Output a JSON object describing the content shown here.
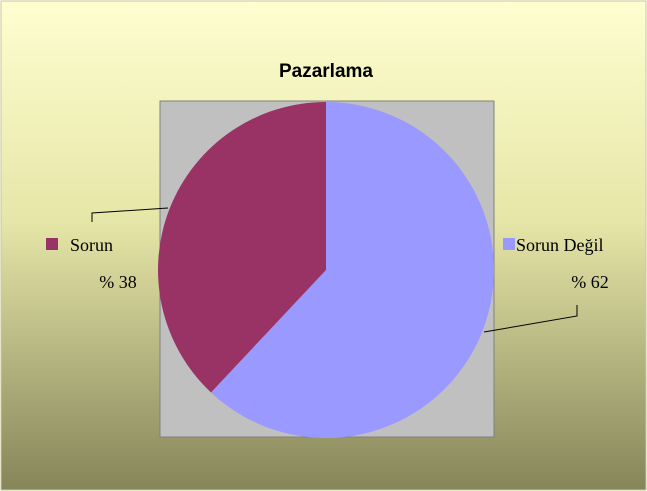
{
  "chart_data": {
    "type": "pie",
    "title": "Pazarlama",
    "categories": [
      "Sorun Değil",
      "Sorun"
    ],
    "values": [
      62,
      38
    ],
    "value_labels": [
      "% 62",
      "% 38"
    ],
    "colors": [
      "#9999ff",
      "#993366"
    ]
  }
}
